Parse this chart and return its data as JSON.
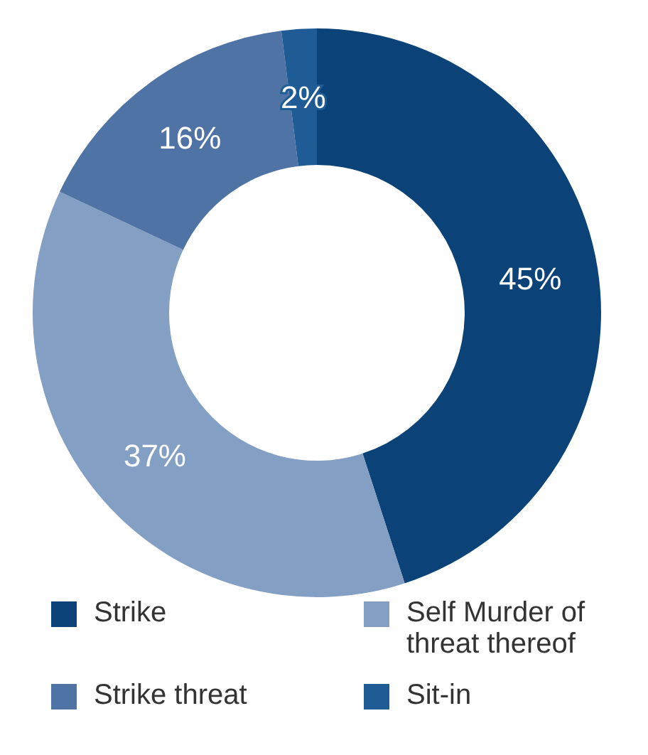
{
  "chart_data": {
    "type": "donut",
    "categories": [
      "Strike",
      "Self Murder of threat thereof",
      "Strike threat",
      "Sit-in"
    ],
    "values": [
      45,
      37,
      16,
      2
    ],
    "colors": [
      "#0b4379",
      "#849fc4",
      "#4f73a4",
      "#1f5b95"
    ],
    "value_labels": [
      "45%",
      "37%",
      "16%",
      "2%"
    ],
    "legend": "bottom"
  }
}
